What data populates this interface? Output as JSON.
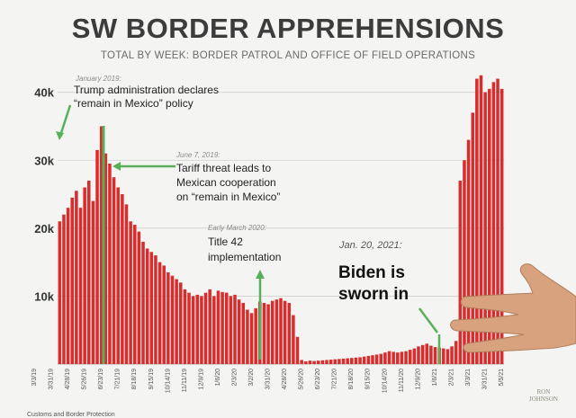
{
  "chart_data": {
    "type": "bar",
    "title": "SW BORDER APPREHENSIONS",
    "subtitle": "TOTAL BY WEEK: BORDER PATROL AND OFFICE OF FIELD OPERATIONS",
    "ylabel": "",
    "xlabel": "",
    "ylim": [
      0,
      43000
    ],
    "yticks": [
      "10k",
      "20k",
      "30k",
      "40k"
    ],
    "grid": true,
    "xticks": [
      "3/3/19",
      "3/31/19",
      "4/28/19",
      "5/26/19",
      "6/23/19",
      "7/21/19",
      "8/18/19",
      "9/15/19",
      "10/14/19",
      "11/11/19",
      "12/9/19",
      "1/6/20",
      "2/3/20",
      "3/2/20",
      "3/31/20",
      "4/28/20",
      "5/26/20",
      "6/23/20",
      "7/21/20",
      "8/18/20",
      "9/15/20",
      "10/14/20",
      "11/11/20",
      "12/9/20",
      "1/6/21",
      "2/3/21",
      "3/3/21",
      "3/31/21",
      "5/5/21"
    ],
    "values": [
      21000,
      22000,
      23000,
      24500,
      25500,
      23000,
      26000,
      27000,
      24000,
      31500,
      35000,
      31000,
      29500,
      27500,
      26000,
      25000,
      23500,
      21000,
      20500,
      19500,
      18000,
      17000,
      16500,
      16000,
      15000,
      14500,
      13500,
      13000,
      12500,
      12000,
      11000,
      10500,
      10000,
      10200,
      10000,
      10500,
      11000,
      10000,
      10800,
      10600,
      10500,
      10000,
      10200,
      9500,
      9000,
      8000,
      7500,
      8200,
      9200,
      9000,
      8800,
      9300,
      9500,
      9700,
      9300,
      9000,
      7200,
      4000,
      600,
      400,
      500,
      450,
      500,
      550,
      600,
      650,
      700,
      750,
      800,
      850,
      900,
      950,
      1000,
      1100,
      1200,
      1300,
      1400,
      1500,
      1700,
      1900,
      1800,
      1700,
      1800,
      1900,
      2100,
      2300,
      2600,
      2800,
      3000,
      2700,
      2500,
      2400,
      2300,
      2200,
      2600,
      3400,
      27000,
      30000,
      33000,
      37000,
      42000,
      42500,
      40000,
      40500,
      41500,
      42000,
      40500
    ]
  },
  "annotations": [
    {
      "date": "January 2019:",
      "line1": "Trump administration declares",
      "line2": "“remain in Mexico” policy"
    },
    {
      "date": "June 7, 2019:",
      "line1": "Tariff threat leads to",
      "line2": "Mexican cooperation",
      "line3": "on “remain in Mexico”"
    },
    {
      "date": "Early March 2020:",
      "line1": "Title 42",
      "line2": "implementation"
    },
    {
      "date": "Jan. 20, 2021:",
      "line1": "Biden is",
      "line2": "sworn in"
    }
  ],
  "source_text": "Customs and Border Protection",
  "logo_text": [
    "RON",
    "JOHNSON"
  ],
  "colors": {
    "bar": "#d92c2c",
    "marker": "#59b05a",
    "background": "#f4f4f2",
    "grid": "#cfcfcf"
  }
}
